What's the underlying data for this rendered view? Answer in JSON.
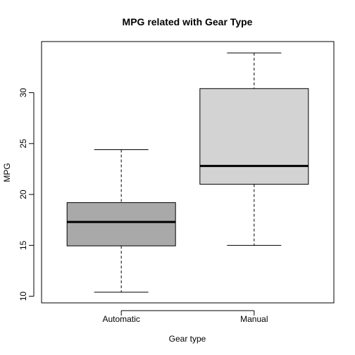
{
  "chart_data": {
    "type": "boxplot",
    "title": "MPG related with Gear Type",
    "xlabel": "Gear type",
    "ylabel": "MPG",
    "ylim": [
      9.35,
      35.02
    ],
    "yticks": [
      10,
      15,
      20,
      25,
      30
    ],
    "grid": false,
    "legend": "none",
    "categories": [
      "Automatic",
      "Manual"
    ],
    "boxes": [
      {
        "category": "Automatic",
        "min": 10.4,
        "q1": 14.95,
        "median": 17.3,
        "q3": 19.2,
        "max": 24.4,
        "color": "#a9a9a9"
      },
      {
        "category": "Manual",
        "min": 15.0,
        "q1": 21.0,
        "median": 22.8,
        "q3": 30.4,
        "max": 33.9,
        "color": "#d3d3d3"
      }
    ]
  }
}
